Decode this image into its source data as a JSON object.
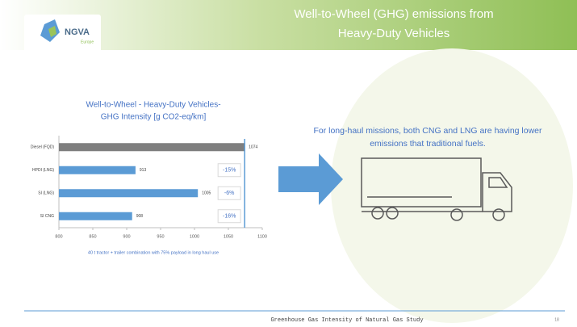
{
  "slide": {
    "title": [
      "Well-to-Wheel (GHG) emissions from",
      "Heavy-Duty Vehicles"
    ],
    "logo": "NGVA",
    "logo_sub": "Europe",
    "message": [
      "For long-haul missions, both CNG and LNG are having lower",
      "emissions that traditional fuels."
    ],
    "footer": "Greenhouse Gas Intensity of Natural Gas Study",
    "page": "18"
  },
  "chart_data": {
    "type": "hbar",
    "title": [
      "Well-to-Wheel - Heavy-Duty Vehicles-",
      "GHG Intensity [g CO2-eq/km]"
    ],
    "categories": [
      "Diesel (FQD)",
      "HPDI (LNG)",
      "SI (LNG)",
      "SI CNG"
    ],
    "values": [
      1074,
      913,
      1005,
      908
    ],
    "colors": [
      "#7f7f7f",
      "#5b9bd5",
      "#5b9bd5",
      "#5b9bd5"
    ],
    "annotations": [
      "-15%",
      "-6%",
      "-16%"
    ],
    "note": "40 t tractor + trailer combination with 75% payload in long haul use",
    "xlim": [
      800,
      1100
    ],
    "xticks": [
      800,
      850,
      900,
      950,
      1000,
      1050,
      1100
    ]
  }
}
